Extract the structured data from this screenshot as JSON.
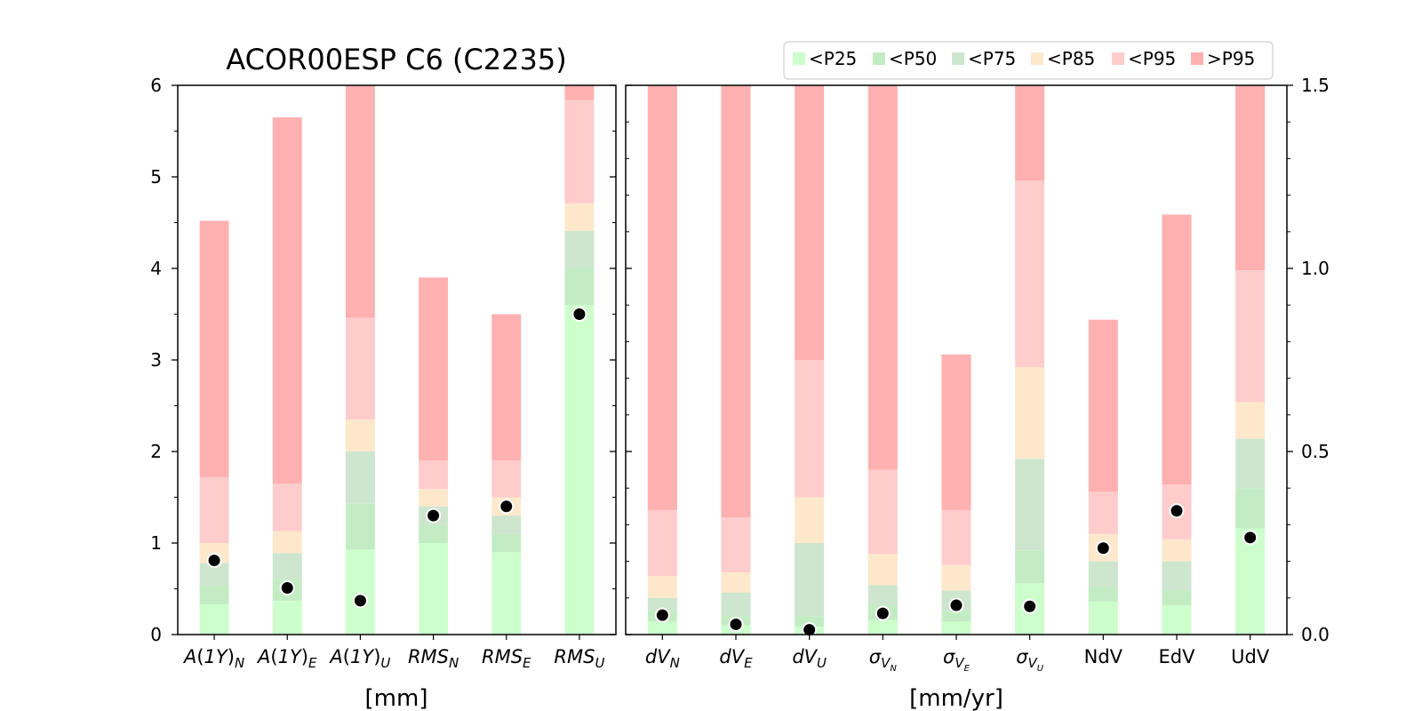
{
  "title": "ACOR00ESP C6 (C2235)",
  "legend": {
    "placement": "top-right",
    "items": [
      {
        "label": "<P25",
        "color": "#ccffcc"
      },
      {
        "label": "<P50",
        "color": "#c4ecc4"
      },
      {
        "label": "<P75",
        "color": "#cde6cd"
      },
      {
        "label": "<P85",
        "color": "#fde8cc"
      },
      {
        "label": "<P95",
        "color": "#ffcccc"
      },
      {
        "label": ">P95",
        "color": "#ffb0b0"
      }
    ]
  },
  "chart_data": [
    {
      "type": "bar",
      "stacked": true,
      "panel": "left",
      "xlabel": "[mm]",
      "ylim": [
        0,
        6
      ],
      "yticks": [
        "0",
        "1",
        "2",
        "3",
        "4",
        "5",
        "6"
      ],
      "categories": [
        {
          "base": "A(1Y)",
          "sub": "N",
          "italic_base": false
        },
        {
          "base": "A(1Y)",
          "sub": "E",
          "italic_base": false
        },
        {
          "base": "A(1Y)",
          "sub": "U",
          "italic_base": false
        },
        {
          "base": "RMS",
          "sub": "N",
          "italic_base": true
        },
        {
          "base": "RMS",
          "sub": "E",
          "italic_base": true
        },
        {
          "base": "RMS",
          "sub": "U",
          "italic_base": true
        }
      ],
      "percentile_bounds": [
        [
          0.33,
          0.53,
          0.78,
          1.0,
          1.72,
          4.52
        ],
        [
          0.37,
          0.6,
          0.89,
          1.13,
          1.65,
          5.65
        ],
        [
          0.93,
          1.43,
          2.0,
          2.35,
          3.46,
          6.0
        ],
        [
          1.0,
          1.2,
          1.4,
          1.59,
          1.9,
          3.9
        ],
        [
          0.9,
          1.1,
          1.3,
          1.5,
          1.9,
          3.5
        ],
        [
          3.6,
          4.0,
          4.41,
          4.71,
          5.84,
          6.0
        ]
      ],
      "values": [
        0.81,
        0.51,
        0.37,
        1.3,
        1.4,
        3.5
      ]
    },
    {
      "type": "bar",
      "stacked": true,
      "panel": "right",
      "xlabel": "[mm/yr]",
      "ylim": [
        0,
        1.5
      ],
      "yticks": [
        "0.0",
        "0.5",
        "1.0",
        "1.5"
      ],
      "categories": [
        {
          "base": "dV",
          "sub": "N",
          "kind": "italic"
        },
        {
          "base": "dV",
          "sub": "E",
          "kind": "italic"
        },
        {
          "base": "dV",
          "sub": "U",
          "kind": "italic"
        },
        {
          "base": "σ",
          "sub": "V",
          "subsub": "N",
          "kind": "sigma"
        },
        {
          "base": "σ",
          "sub": "V",
          "subsub": "E",
          "kind": "sigma"
        },
        {
          "base": "σ",
          "sub": "V",
          "subsub": "U",
          "kind": "sigma"
        },
        {
          "base": "NdV",
          "kind": "plain"
        },
        {
          "base": "EdV",
          "kind": "plain"
        },
        {
          "base": "UdV",
          "kind": "plain"
        }
      ],
      "percentile_bounds": [
        [
          0.035,
          0.065,
          0.1,
          0.16,
          0.34,
          1.5
        ],
        [
          0.025,
          0.05,
          0.115,
          0.17,
          0.32,
          1.5
        ],
        [
          0.022,
          0.05,
          0.25,
          0.375,
          0.75,
          1.5
        ],
        [
          0.04,
          0.08,
          0.135,
          0.22,
          0.45,
          1.5
        ],
        [
          0.035,
          0.065,
          0.12,
          0.19,
          0.34,
          0.765
        ],
        [
          0.14,
          0.23,
          0.48,
          0.73,
          1.24,
          1.5
        ],
        [
          0.09,
          0.13,
          0.2,
          0.275,
          0.39,
          0.86
        ],
        [
          0.08,
          0.12,
          0.2,
          0.26,
          0.41,
          1.147
        ],
        [
          0.29,
          0.4,
          0.535,
          0.635,
          0.995,
          1.5
        ]
      ],
      "values": [
        0.053,
        0.028,
        0.013,
        0.058,
        0.08,
        0.077,
        0.236,
        0.338,
        0.265
      ]
    }
  ]
}
